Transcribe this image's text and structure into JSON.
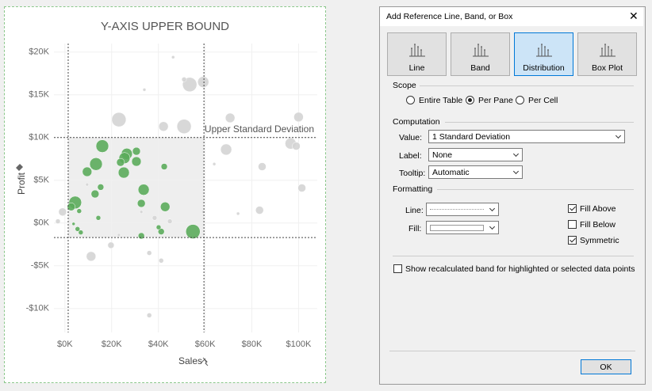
{
  "chart_data": {
    "type": "scatter",
    "title": "Y-AXIS UPPER BOUND",
    "x_label": "Sales",
    "y_label": "Profit",
    "xlim": [
      -4700,
      108000
    ],
    "ylim": [
      -12800,
      21000
    ],
    "xticks": [
      {
        "value": 0,
        "label": "$0K"
      },
      {
        "value": 20000,
        "label": "$20K"
      },
      {
        "value": 40000,
        "label": "$40K"
      },
      {
        "value": 60000,
        "label": "$60K"
      },
      {
        "value": 80000,
        "label": "$80K"
      },
      {
        "value": 100000,
        "label": "$100K"
      }
    ],
    "yticks": [
      {
        "value": -10000,
        "label": "-$10K"
      },
      {
        "value": -5000,
        "label": "-$5K"
      },
      {
        "value": 0,
        "label": "$0K"
      },
      {
        "value": 5000,
        "label": "$5K"
      },
      {
        "value": 10000,
        "label": "$10K"
      },
      {
        "value": 15000,
        "label": "$15K"
      },
      {
        "value": 20000,
        "label": "$20K"
      }
    ],
    "grid": true,
    "x_reference_lines": [
      1400,
      59500
    ],
    "y_reference_lines": [
      10000,
      -1700
    ],
    "annotation": "Upper Standard Deviation",
    "series": [
      {
        "color": "#5bab5b",
        "x": [
          16000,
          13300,
          9500,
          26500,
          25500,
          30600,
          30600,
          23800,
          25200,
          33700,
          12900,
          15300,
          4400,
          2700,
          6100,
          14300,
          42900,
          32700,
          42500,
          54800,
          32700,
          41200,
          40100,
          5400,
          6800,
          3700
        ],
        "values": [
          9000,
          6900,
          6000,
          8100,
          7600,
          8400,
          7200,
          7100,
          5900,
          3900,
          3400,
          4200,
          2400,
          1900,
          1400,
          600,
          1900,
          2300,
          6600,
          -1000,
          -1500,
          -1000,
          -500,
          -700,
          -1100,
          -100
        ],
        "sizes": [
          8,
          8,
          6,
          7,
          7,
          5,
          6,
          5,
          7,
          7,
          5,
          4,
          8,
          5,
          3,
          3,
          6,
          5,
          4,
          9,
          4,
          4,
          3,
          3,
          3,
          2
        ]
      },
      {
        "color": "#d4d4d4",
        "x": [
          53400,
          59200,
          51000,
          46300,
          34000,
          23100,
          51000,
          42200,
          70700,
          100000,
          69000,
          96600,
          99000,
          84400,
          101400,
          83300,
          63900,
          -1000,
          -3000,
          11200,
          19700,
          36100,
          41200,
          38400,
          44900,
          36100,
          23100,
          32700,
          59200,
          74100,
          9500
        ],
        "values": [
          16200,
          16500,
          16800,
          19400,
          15600,
          12100,
          11300,
          11300,
          12300,
          12400,
          8600,
          9300,
          9000,
          6600,
          4100,
          1500,
          6900,
          1300,
          200,
          -3900,
          -2600,
          -3500,
          -4400,
          600,
          200,
          -10800,
          -1400,
          1300,
          1300,
          1100,
          4500
        ],
        "sizes": [
          9,
          7,
          3,
          2,
          2,
          9,
          9,
          6,
          6,
          6,
          7,
          7,
          5,
          5,
          5,
          5,
          2,
          5,
          3,
          6,
          4,
          3,
          3,
          3,
          3,
          3,
          2,
          2,
          2,
          2,
          2
        ]
      }
    ]
  },
  "dialog": {
    "title": "Add Reference Line, Band, or Box",
    "types": [
      {
        "label": "Line",
        "selected": false
      },
      {
        "label": "Band",
        "selected": false
      },
      {
        "label": "Distribution",
        "selected": true
      },
      {
        "label": "Box Plot",
        "selected": false
      }
    ],
    "scope": {
      "heading": "Scope",
      "options": [
        {
          "label": "Entire Table",
          "selected": false
        },
        {
          "label": "Per Pane",
          "selected": true
        },
        {
          "label": "Per Cell",
          "selected": false
        }
      ]
    },
    "computation": {
      "heading": "Computation",
      "value_label": "Value:",
      "value": "1 Standard Deviation",
      "label_label": "Label:",
      "label": "None",
      "tooltip_label": "Tooltip:",
      "tooltip": "Automatic"
    },
    "formatting": {
      "heading": "Formatting",
      "line_label": "Line:",
      "fill_label": "Fill:",
      "checks": [
        {
          "label": "Fill Above",
          "checked": true
        },
        {
          "label": "Fill Below",
          "checked": false
        },
        {
          "label": "Symmetric",
          "checked": true
        }
      ]
    },
    "recalc": {
      "label": "Show recalculated band for highlighted or selected data points",
      "checked": false
    },
    "ok": "OK"
  }
}
